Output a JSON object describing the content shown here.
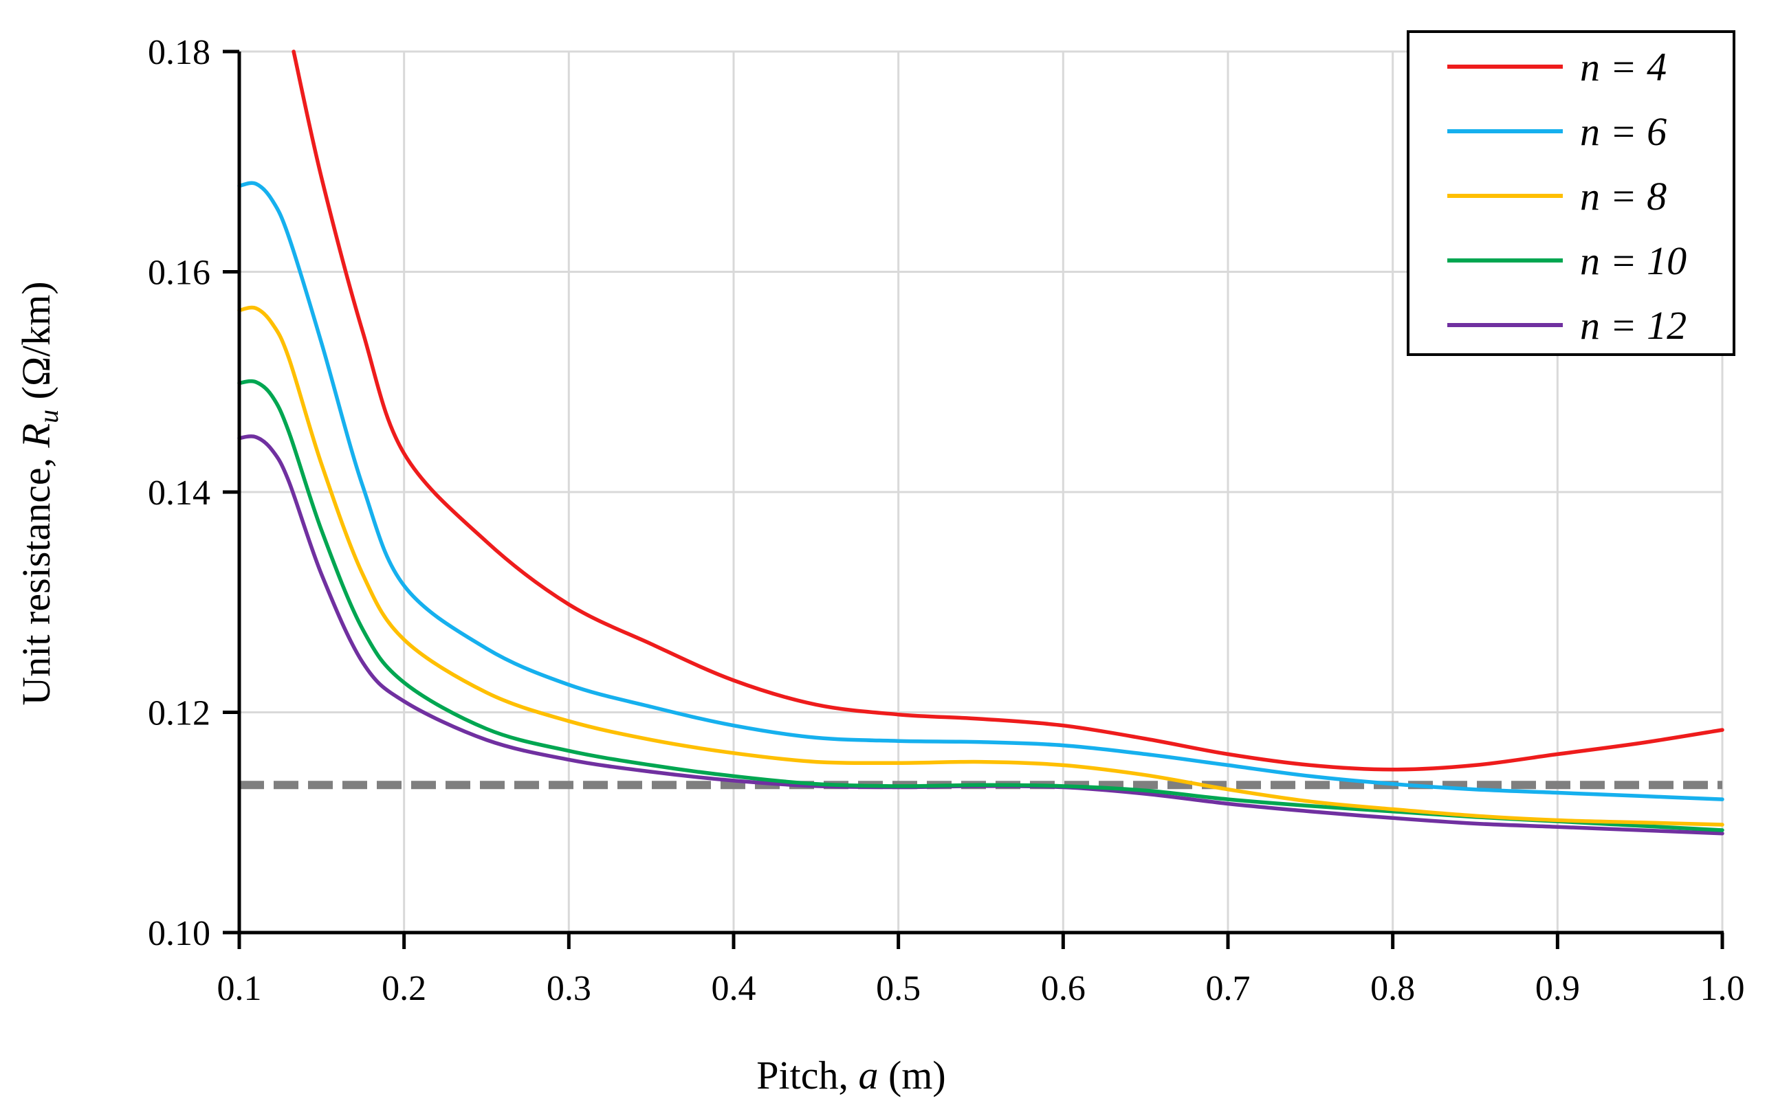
{
  "chart_data": {
    "type": "line",
    "title": "",
    "xlabel": {
      "prefix": "Pitch, ",
      "var": "a",
      "suffix": " (m)"
    },
    "ylabel": {
      "prefix": "Unit resistance, ",
      "var": "R",
      "sub": "u",
      "suffix": " (Ω/km)"
    },
    "xlim": [
      0.1,
      1.0
    ],
    "ylim": [
      0.1,
      0.18
    ],
    "x_ticks": [
      "0.1",
      "0.2",
      "0.3",
      "0.4",
      "0.5",
      "0.6",
      "0.7",
      "0.8",
      "0.9",
      "1.0"
    ],
    "y_ticks": [
      "0.10",
      "0.12",
      "0.14",
      "0.16",
      "0.18"
    ],
    "grid": true,
    "legend_position": "top-right",
    "x": [
      0.1,
      0.2,
      0.3,
      0.4,
      0.5,
      0.6,
      0.7,
      0.8,
      0.9,
      1.0
    ],
    "series": [
      {
        "name": "n = 4",
        "color": "#ee1c1c",
        "x": [
          0.133,
          0.15,
          0.175,
          0.2,
          0.25,
          0.3,
          0.35,
          0.4,
          0.45,
          0.5,
          0.55,
          0.6,
          0.65,
          0.7,
          0.75,
          0.8,
          0.85,
          0.9,
          0.95,
          1.0
        ],
        "values": [
          0.18,
          0.1685,
          0.1545,
          0.1435,
          0.1355,
          0.1298,
          0.1262,
          0.1229,
          0.1207,
          0.1198,
          0.1194,
          0.1188,
          0.1176,
          0.1162,
          0.1152,
          0.1148,
          0.1152,
          0.1162,
          0.1172,
          0.1184
        ]
      },
      {
        "name": "n = 6",
        "color": "#16b0ee",
        "x": [
          0.1,
          0.11,
          0.12,
          0.13,
          0.15,
          0.175,
          0.2,
          0.25,
          0.3,
          0.35,
          0.4,
          0.45,
          0.5,
          0.55,
          0.6,
          0.65,
          0.7,
          0.75,
          0.8,
          0.85,
          0.9,
          0.95,
          1.0
        ],
        "values": [
          0.1678,
          0.168,
          0.1665,
          0.1632,
          0.1535,
          0.1405,
          0.1315,
          0.1258,
          0.1225,
          0.1205,
          0.1188,
          0.1177,
          0.1174,
          0.1173,
          0.117,
          0.1162,
          0.1152,
          0.1142,
          0.1135,
          0.113,
          0.1127,
          0.1124,
          0.1121
        ]
      },
      {
        "name": "n = 8",
        "color": "#ffbf00",
        "x": [
          0.1,
          0.11,
          0.12,
          0.13,
          0.15,
          0.175,
          0.2,
          0.25,
          0.3,
          0.35,
          0.4,
          0.45,
          0.5,
          0.55,
          0.6,
          0.65,
          0.7,
          0.75,
          0.8,
          0.85,
          0.9,
          0.95,
          1.0
        ],
        "values": [
          0.1565,
          0.1567,
          0.1553,
          0.1522,
          0.1425,
          0.1325,
          0.1266,
          0.1218,
          0.1192,
          0.1175,
          0.1163,
          0.1155,
          0.1154,
          0.1155,
          0.1152,
          0.1143,
          0.113,
          0.1119,
          0.1112,
          0.1106,
          0.1102,
          0.11,
          0.1098
        ]
      },
      {
        "name": "n = 10",
        "color": "#00a651",
        "x": [
          0.1,
          0.11,
          0.12,
          0.13,
          0.15,
          0.175,
          0.2,
          0.25,
          0.3,
          0.35,
          0.4,
          0.45,
          0.5,
          0.55,
          0.6,
          0.65,
          0.7,
          0.75,
          0.8,
          0.85,
          0.9,
          0.95,
          1.0
        ],
        "values": [
          0.1499,
          0.15,
          0.1487,
          0.1455,
          0.1365,
          0.1275,
          0.1227,
          0.1185,
          0.1165,
          0.1152,
          0.1142,
          0.1135,
          0.1133,
          0.1134,
          0.1133,
          0.1129,
          0.1121,
          0.1115,
          0.111,
          0.1105,
          0.1101,
          0.1097,
          0.1093
        ]
      },
      {
        "name": "n = 12",
        "color": "#7030a0",
        "x": [
          0.1,
          0.11,
          0.12,
          0.13,
          0.15,
          0.175,
          0.2,
          0.25,
          0.3,
          0.35,
          0.4,
          0.45,
          0.5,
          0.55,
          0.6,
          0.65,
          0.7,
          0.75,
          0.8,
          0.85,
          0.9,
          0.95,
          1.0
        ],
        "values": [
          0.1449,
          0.145,
          0.1438,
          0.141,
          0.1325,
          0.1245,
          0.121,
          0.1175,
          0.1157,
          0.1146,
          0.1138,
          0.1133,
          0.1132,
          0.1133,
          0.1132,
          0.1126,
          0.1117,
          0.111,
          0.1104,
          0.1099,
          0.1096,
          0.1093,
          0.109
        ]
      }
    ],
    "reference_line": {
      "y": 0.1134,
      "style": "dashed",
      "color": "#7f7f7f"
    }
  }
}
